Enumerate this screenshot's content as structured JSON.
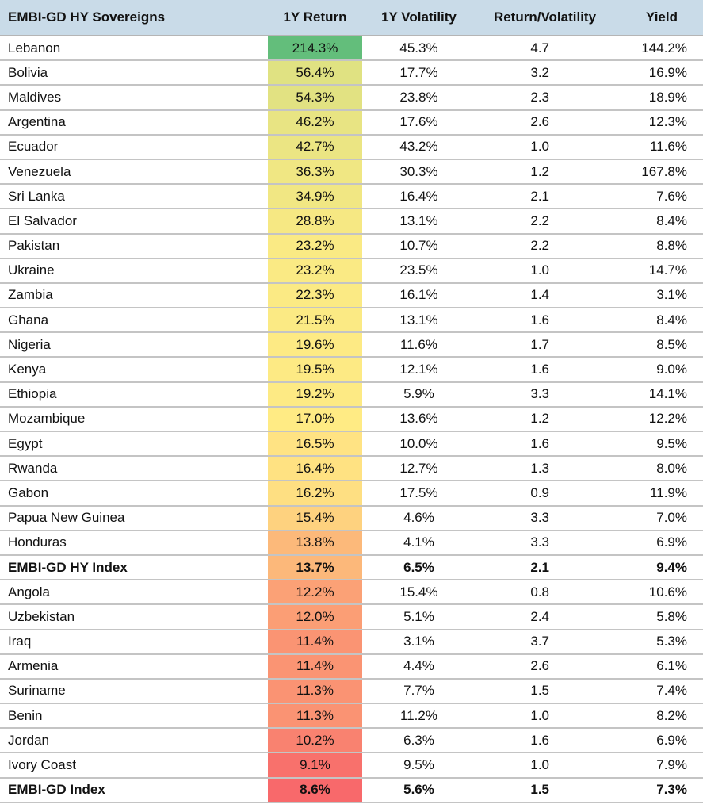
{
  "colors": {
    "header_bg": "#c9dbe8",
    "scale_low": "#f8696b",
    "scale_mid": "#ffeb84",
    "scale_high": "#63be7b"
  },
  "chart_data": {
    "type": "table",
    "columns": [
      "EMBI-GD HY Sovereigns",
      "1Y Return",
      "1Y Volatility",
      "Return/Volatility",
      "Yield"
    ],
    "rows": [
      {
        "name": "Lebanon",
        "ret": "214.3%",
        "vol": "45.3%",
        "ratio": "4.7",
        "yield": "144.2%",
        "ret_value": 214.3,
        "bold": false
      },
      {
        "name": "Bolivia",
        "ret": "56.4%",
        "vol": "17.7%",
        "ratio": "3.2",
        "yield": "16.9%",
        "ret_value": 56.4,
        "bold": false
      },
      {
        "name": "Maldives",
        "ret": "54.3%",
        "vol": "23.8%",
        "ratio": "2.3",
        "yield": "18.9%",
        "ret_value": 54.3,
        "bold": false
      },
      {
        "name": "Argentina",
        "ret": "46.2%",
        "vol": "17.6%",
        "ratio": "2.6",
        "yield": "12.3%",
        "ret_value": 46.2,
        "bold": false
      },
      {
        "name": "Ecuador",
        "ret": "42.7%",
        "vol": "43.2%",
        "ratio": "1.0",
        "yield": "11.6%",
        "ret_value": 42.7,
        "bold": false
      },
      {
        "name": "Venezuela",
        "ret": "36.3%",
        "vol": "30.3%",
        "ratio": "1.2",
        "yield": "167.8%",
        "ret_value": 36.3,
        "bold": false
      },
      {
        "name": "Sri Lanka",
        "ret": "34.9%",
        "vol": "16.4%",
        "ratio": "2.1",
        "yield": "7.6%",
        "ret_value": 34.9,
        "bold": false
      },
      {
        "name": "El Salvador",
        "ret": "28.8%",
        "vol": "13.1%",
        "ratio": "2.2",
        "yield": "8.4%",
        "ret_value": 28.8,
        "bold": false
      },
      {
        "name": "Pakistan",
        "ret": "23.2%",
        "vol": "10.7%",
        "ratio": "2.2",
        "yield": "8.8%",
        "ret_value": 23.2,
        "bold": false
      },
      {
        "name": "Ukraine",
        "ret": "23.2%",
        "vol": "23.5%",
        "ratio": "1.0",
        "yield": "14.7%",
        "ret_value": 23.2,
        "bold": false
      },
      {
        "name": "Zambia",
        "ret": "22.3%",
        "vol": "16.1%",
        "ratio": "1.4",
        "yield": "3.1%",
        "ret_value": 22.3,
        "bold": false
      },
      {
        "name": "Ghana",
        "ret": "21.5%",
        "vol": "13.1%",
        "ratio": "1.6",
        "yield": "8.4%",
        "ret_value": 21.5,
        "bold": false
      },
      {
        "name": "Nigeria",
        "ret": "19.6%",
        "vol": "11.6%",
        "ratio": "1.7",
        "yield": "8.5%",
        "ret_value": 19.6,
        "bold": false
      },
      {
        "name": "Kenya",
        "ret": "19.5%",
        "vol": "12.1%",
        "ratio": "1.6",
        "yield": "9.0%",
        "ret_value": 19.5,
        "bold": false
      },
      {
        "name": "Ethiopia",
        "ret": "19.2%",
        "vol": "5.9%",
        "ratio": "3.3",
        "yield": "14.1%",
        "ret_value": 19.2,
        "bold": false
      },
      {
        "name": "Mozambique",
        "ret": "17.0%",
        "vol": "13.6%",
        "ratio": "1.2",
        "yield": "12.2%",
        "ret_value": 17.0,
        "bold": false
      },
      {
        "name": "Egypt",
        "ret": "16.5%",
        "vol": "10.0%",
        "ratio": "1.6",
        "yield": "9.5%",
        "ret_value": 16.5,
        "bold": false
      },
      {
        "name": "Rwanda",
        "ret": "16.4%",
        "vol": "12.7%",
        "ratio": "1.3",
        "yield": "8.0%",
        "ret_value": 16.4,
        "bold": false
      },
      {
        "name": "Gabon",
        "ret": "16.2%",
        "vol": "17.5%",
        "ratio": "0.9",
        "yield": "11.9%",
        "ret_value": 16.2,
        "bold": false
      },
      {
        "name": "Papua New Guinea",
        "ret": "15.4%",
        "vol": "4.6%",
        "ratio": "3.3",
        "yield": "7.0%",
        "ret_value": 15.4,
        "bold": false
      },
      {
        "name": "Honduras",
        "ret": "13.8%",
        "vol": "4.1%",
        "ratio": "3.3",
        "yield": "6.9%",
        "ret_value": 13.8,
        "bold": false
      },
      {
        "name": "EMBI-GD HY Index",
        "ret": "13.7%",
        "vol": "6.5%",
        "ratio": "2.1",
        "yield": "9.4%",
        "ret_value": 13.7,
        "bold": true
      },
      {
        "name": "Angola",
        "ret": "12.2%",
        "vol": "15.4%",
        "ratio": "0.8",
        "yield": "10.6%",
        "ret_value": 12.2,
        "bold": false
      },
      {
        "name": "Uzbekistan",
        "ret": "12.0%",
        "vol": "5.1%",
        "ratio": "2.4",
        "yield": "5.8%",
        "ret_value": 12.0,
        "bold": false
      },
      {
        "name": "Iraq",
        "ret": "11.4%",
        "vol": "3.1%",
        "ratio": "3.7",
        "yield": "5.3%",
        "ret_value": 11.4,
        "bold": false
      },
      {
        "name": "Armenia",
        "ret": "11.4%",
        "vol": "4.4%",
        "ratio": "2.6",
        "yield": "6.1%",
        "ret_value": 11.4,
        "bold": false
      },
      {
        "name": "Suriname",
        "ret": "11.3%",
        "vol": "7.7%",
        "ratio": "1.5",
        "yield": "7.4%",
        "ret_value": 11.3,
        "bold": false
      },
      {
        "name": "Benin",
        "ret": "11.3%",
        "vol": "11.2%",
        "ratio": "1.0",
        "yield": "8.2%",
        "ret_value": 11.3,
        "bold": false
      },
      {
        "name": "Jordan",
        "ret": "10.2%",
        "vol": "6.3%",
        "ratio": "1.6",
        "yield": "6.9%",
        "ret_value": 10.2,
        "bold": false
      },
      {
        "name": "Ivory Coast",
        "ret": "9.1%",
        "vol": "9.5%",
        "ratio": "1.0",
        "yield": "7.9%",
        "ret_value": 9.1,
        "bold": false
      },
      {
        "name": "EMBI-GD Index",
        "ret": "8.6%",
        "vol": "5.6%",
        "ratio": "1.5",
        "yield": "7.3%",
        "ret_value": 8.6,
        "bold": true
      }
    ]
  }
}
